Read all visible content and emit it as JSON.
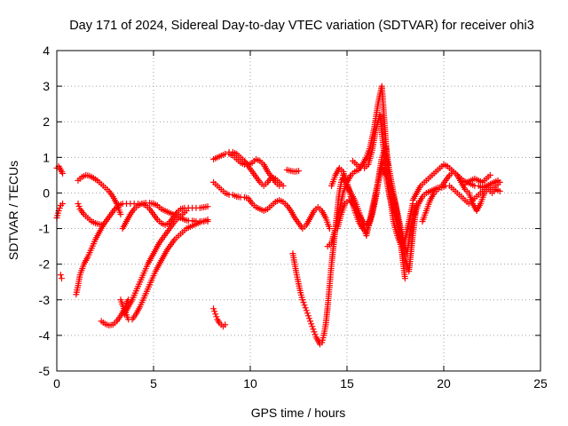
{
  "chart_data": {
    "type": "scatter",
    "title": "Day 171 of 2024, Sidereal Day-to-day VTEC variation (SDTVAR) for receiver ohi3",
    "xlabel": "GPS time / hours",
    "ylabel": "SDTVAR / TECUs",
    "xlim": [
      0,
      25
    ],
    "ylim": [
      -5,
      4
    ],
    "xticks": [
      "0",
      "5",
      "10",
      "15",
      "20",
      "25"
    ],
    "yticks": [
      "-5",
      "-4",
      "-3",
      "-2",
      "-1",
      "0",
      "1",
      "2",
      "3",
      "4"
    ],
    "grid": true,
    "marker": "plus",
    "color": "#ff0000",
    "series": [
      {
        "name": "s1",
        "x": [
          0.0,
          0.1,
          0.2,
          0.25,
          0.3
        ],
        "y": [
          0.7,
          0.75,
          0.65,
          0.6,
          0.55
        ]
      },
      {
        "name": "s2",
        "x": [
          0.0,
          0.1,
          0.2,
          0.3
        ],
        "y": [
          -0.7,
          -0.5,
          -0.35,
          -0.3
        ]
      },
      {
        "name": "s3",
        "x": [
          0.2,
          0.25
        ],
        "y": [
          -2.3,
          -2.4
        ]
      },
      {
        "name": "s4",
        "x": [
          1.0,
          1.1,
          1.2,
          1.4,
          1.6,
          1.8,
          2.0,
          2.2,
          2.4,
          2.6,
          2.8,
          3.0,
          3.2,
          3.4,
          3.6,
          3.8,
          4.0,
          4.2,
          4.4,
          4.6,
          4.8,
          5.0,
          5.2,
          5.4,
          5.6,
          5.8,
          6.0
        ],
        "y": [
          -2.85,
          -2.6,
          -2.3,
          -2.0,
          -1.8,
          -1.55,
          -1.3,
          -1.1,
          -0.9,
          -0.75,
          -0.6,
          -0.45,
          -0.35,
          -0.3,
          -0.3,
          -0.3,
          -0.3,
          -0.3,
          -0.3,
          -0.28,
          -0.28,
          -0.3,
          -0.35,
          -0.45,
          -0.5,
          -0.55,
          -0.6
        ]
      },
      {
        "name": "s5",
        "x": [
          1.1,
          1.3,
          1.5,
          1.7,
          1.9,
          2.1,
          2.3,
          2.5,
          2.7,
          2.9,
          3.1,
          3.3
        ],
        "y": [
          0.35,
          0.45,
          0.5,
          0.48,
          0.42,
          0.35,
          0.25,
          0.15,
          0.05,
          -0.1,
          -0.3,
          -0.6
        ]
      },
      {
        "name": "s6",
        "x": [
          1.1,
          1.2,
          1.4,
          1.6,
          1.8,
          2.0,
          2.2,
          2.4
        ],
        "y": [
          -0.3,
          -0.45,
          -0.6,
          -0.7,
          -0.8,
          -0.85,
          -0.88,
          -0.9
        ]
      },
      {
        "name": "s7",
        "x": [
          2.3,
          2.5,
          2.7,
          2.9,
          3.1,
          3.3,
          3.5,
          3.6,
          3.7
        ],
        "y": [
          -3.6,
          -3.68,
          -3.72,
          -3.7,
          -3.6,
          -3.45,
          -3.25,
          -3.1,
          -3.0
        ]
      },
      {
        "name": "s8",
        "x": [
          3.3,
          3.5,
          3.7,
          3.9,
          4.1,
          4.3,
          4.5,
          4.7,
          4.9,
          5.1,
          5.3,
          5.5,
          5.7,
          5.9,
          6.1,
          6.3,
          6.5,
          6.7,
          6.9,
          7.1,
          7.3,
          7.5,
          7.7,
          7.8
        ],
        "y": [
          -3.0,
          -3.3,
          -3.55,
          -3.55,
          -3.4,
          -3.2,
          -2.95,
          -2.7,
          -2.45,
          -2.2,
          -2.0,
          -1.8,
          -1.6,
          -1.45,
          -1.3,
          -1.2,
          -1.1,
          -1.0,
          -0.95,
          -0.9,
          -0.85,
          -0.8,
          -0.78,
          -0.75
        ]
      },
      {
        "name": "s9",
        "x": [
          3.5,
          3.7,
          3.9,
          4.1,
          4.3,
          4.5,
          4.7,
          4.9,
          5.1,
          5.3,
          5.5,
          5.7,
          5.9,
          6.1,
          6.3,
          6.5,
          6.7
        ],
        "y": [
          -3.4,
          -3.2,
          -3.0,
          -2.75,
          -2.5,
          -2.25,
          -2.0,
          -1.8,
          -1.6,
          -1.4,
          -1.25,
          -1.1,
          -0.95,
          -0.8,
          -0.7,
          -0.6,
          -0.5
        ]
      },
      {
        "name": "s10",
        "x": [
          3.4,
          3.6,
          3.8,
          4.0,
          4.2,
          4.4,
          4.6,
          4.8,
          5.0,
          5.2,
          5.4,
          5.6,
          5.8,
          6.0,
          6.2,
          6.4,
          6.6,
          6.8,
          7.0,
          7.2,
          7.4,
          7.6,
          7.8
        ],
        "y": [
          -1.0,
          -0.8,
          -0.6,
          -0.45,
          -0.35,
          -0.3,
          -0.35,
          -0.45,
          -0.6,
          -0.75,
          -0.85,
          -0.9,
          -0.85,
          -0.7,
          -0.55,
          -0.45,
          -0.42,
          -0.42,
          -0.42,
          -0.42,
          -0.42,
          -0.4,
          -0.38
        ]
      },
      {
        "name": "s11",
        "x": [
          6.2,
          6.4,
          6.6,
          6.8,
          7.0,
          7.2,
          7.4,
          7.6,
          7.8
        ],
        "y": [
          -0.6,
          -0.7,
          -0.75,
          -0.78,
          -0.78,
          -0.8,
          -0.8,
          -0.8,
          -0.8
        ]
      },
      {
        "name": "s12",
        "x": [
          8.1,
          8.2,
          8.3,
          8.4,
          8.5,
          8.6,
          8.7
        ],
        "y": [
          -3.25,
          -3.4,
          -3.55,
          -3.65,
          -3.7,
          -3.75,
          -3.7
        ]
      },
      {
        "name": "s13",
        "x": [
          8.1,
          8.3,
          8.5,
          8.7,
          8.9,
          9.1,
          9.3,
          9.5,
          9.7,
          9.9,
          10.1,
          10.3,
          10.5,
          10.7,
          10.9,
          11.1,
          11.3,
          11.5,
          11.7,
          11.9,
          12.1,
          12.3,
          12.5,
          12.7,
          12.9,
          13.1,
          13.3,
          13.5,
          13.7,
          13.9,
          14.1
        ],
        "y": [
          0.3,
          0.2,
          0.1,
          0.0,
          -0.05,
          -0.05,
          -0.1,
          -0.12,
          -0.12,
          -0.15,
          -0.3,
          -0.4,
          -0.45,
          -0.5,
          -0.45,
          -0.35,
          -0.25,
          -0.2,
          -0.25,
          -0.35,
          -0.5,
          -0.7,
          -0.85,
          -1.0,
          -0.9,
          -0.7,
          -0.5,
          -0.4,
          -0.5,
          -0.7,
          -1.0
        ]
      },
      {
        "name": "s14",
        "x": [
          8.1,
          8.3,
          8.5,
          8.7,
          8.9,
          9.1,
          9.3,
          9.5,
          9.7,
          9.9,
          10.1,
          10.3,
          10.5,
          10.7,
          10.9,
          11.1,
          11.3,
          11.5
        ],
        "y": [
          0.95,
          1.0,
          1.05,
          1.1,
          1.1,
          1.05,
          0.95,
          0.85,
          0.8,
          0.8,
          0.85,
          0.95,
          0.9,
          0.8,
          0.6,
          0.45,
          0.3,
          0.2
        ]
      },
      {
        "name": "s15",
        "x": [
          8.9,
          9.1,
          9.3,
          9.5,
          9.7,
          9.9,
          10.1,
          10.3,
          10.5,
          10.7,
          10.9,
          11.1,
          11.3,
          11.5,
          11.7
        ],
        "y": [
          1.15,
          1.15,
          1.1,
          1.0,
          0.9,
          0.75,
          0.6,
          0.45,
          0.3,
          0.2,
          0.3,
          0.45,
          0.4,
          0.3,
          0.2
        ]
      },
      {
        "name": "s16",
        "x": [
          11.9,
          12.1,
          12.3,
          12.5
        ],
        "y": [
          0.65,
          0.62,
          0.6,
          0.62
        ]
      },
      {
        "name": "s17",
        "x": [
          12.2,
          12.3,
          12.4,
          12.5,
          12.6,
          12.7,
          12.8,
          12.9,
          13.0,
          13.1,
          13.2,
          13.3,
          13.4,
          13.5,
          13.6,
          13.7,
          13.8,
          13.9,
          14.0,
          14.1,
          14.2,
          14.3,
          14.4,
          14.5,
          14.6,
          14.7,
          14.8
        ],
        "y": [
          -1.7,
          -2.0,
          -2.3,
          -2.55,
          -2.8,
          -3.0,
          -3.15,
          -3.3,
          -3.45,
          -3.6,
          -3.75,
          -3.9,
          -4.05,
          -4.15,
          -4.25,
          -4.2,
          -4.0,
          -3.7,
          -3.2,
          -2.6,
          -2.0,
          -1.5,
          -1.0,
          -0.5,
          0.0,
          0.3,
          0.5
        ]
      },
      {
        "name": "s18",
        "x": [
          14.0,
          14.2,
          14.4,
          14.6,
          14.8,
          15.0,
          15.2,
          15.4,
          15.6,
          15.8,
          16.0,
          16.2,
          16.4,
          16.6,
          16.8,
          17.0,
          17.2,
          17.4,
          17.6,
          17.8,
          18.0,
          18.2,
          18.4
        ],
        "y": [
          -1.5,
          -1.4,
          -1.0,
          -0.5,
          0.0,
          0.3,
          0.5,
          0.6,
          0.65,
          0.8,
          1.0,
          1.3,
          1.8,
          2.5,
          3.0,
          1.5,
          0.0,
          -0.8,
          -1.2,
          -1.5,
          -1.3,
          -0.8,
          -0.3
        ]
      },
      {
        "name": "s19",
        "x": [
          14.2,
          14.4,
          14.6,
          14.8,
          15.0,
          15.2,
          15.4,
          15.6,
          15.8,
          16.0,
          16.2,
          16.4,
          16.6,
          16.8,
          17.0,
          17.2,
          17.4,
          17.6,
          17.8,
          18.0,
          18.2,
          18.4,
          18.6
        ],
        "y": [
          0.2,
          0.5,
          0.7,
          0.6,
          0.3,
          -0.1,
          -0.5,
          -0.8,
          -1.0,
          -1.1,
          -0.8,
          -0.3,
          0.3,
          1.0,
          1.3,
          0.6,
          0.0,
          -0.6,
          -1.2,
          -1.8,
          -2.2,
          -1.2,
          -0.3
        ]
      },
      {
        "name": "s20",
        "x": [
          14.5,
          14.7,
          14.9,
          15.1,
          15.3,
          15.5,
          15.7,
          15.9,
          16.1,
          16.3,
          16.5,
          16.7,
          16.9,
          17.1,
          17.3,
          17.5,
          17.7,
          17.9,
          18.1,
          18.3,
          18.5
        ],
        "y": [
          -1.0,
          -0.6,
          -0.3,
          -0.2,
          -0.3,
          -0.5,
          -0.7,
          -0.85,
          -0.9,
          -0.6,
          -0.1,
          0.6,
          0.9,
          0.5,
          0.1,
          -0.3,
          -0.8,
          -1.3,
          -1.7,
          -1.0,
          -0.4
        ]
      },
      {
        "name": "s21",
        "x": [
          14.8,
          15.0,
          15.2,
          15.4,
          15.6,
          15.8,
          16.0,
          16.2,
          16.4,
          16.6,
          16.8,
          17.0,
          17.2,
          17.4,
          17.6,
          17.8,
          18.0
        ],
        "y": [
          0.4,
          0.2,
          0.0,
          -0.2,
          -0.5,
          -0.8,
          -1.2,
          -0.7,
          -0.2,
          0.3,
          0.7,
          0.5,
          -0.1,
          -0.5,
          -0.9,
          -1.5,
          -2.4
        ]
      },
      {
        "name": "s22",
        "x": [
          15.3,
          15.5,
          15.7,
          15.9,
          16.1,
          16.3,
          16.5,
          16.7,
          16.9,
          17.1
        ],
        "y": [
          0.9,
          0.8,
          0.7,
          0.7,
          0.8,
          1.2,
          1.8,
          2.2,
          1.2,
          0.8
        ]
      },
      {
        "name": "s23",
        "x": [
          18.4,
          18.6,
          18.8,
          19.0,
          19.2,
          19.4,
          19.6,
          19.8,
          20.0,
          20.2,
          20.4,
          20.6,
          20.8,
          21.0,
          21.2,
          21.4,
          21.6,
          21.8,
          22.0,
          22.2,
          22.4,
          22.6,
          22.8
        ],
        "y": [
          -0.2,
          0.0,
          0.2,
          0.3,
          0.4,
          0.5,
          0.6,
          0.7,
          0.8,
          0.75,
          0.65,
          0.55,
          0.45,
          0.35,
          0.3,
          0.25,
          0.2,
          0.2,
          0.15,
          0.2,
          0.25,
          0.3,
          0.35
        ]
      },
      {
        "name": "s24",
        "x": [
          18.5,
          18.7,
          18.9,
          19.1,
          19.3,
          19.5,
          19.7,
          19.9,
          20.1,
          20.3,
          20.5,
          20.7,
          20.9,
          21.1,
          21.3,
          21.5,
          21.7,
          21.9,
          22.1,
          22.3,
          22.5,
          22.7,
          22.9
        ],
        "y": [
          -0.6,
          -0.3,
          -0.1,
          0.0,
          0.05,
          0.1,
          0.15,
          0.15,
          0.2,
          0.2,
          0.1,
          0.0,
          -0.1,
          -0.2,
          -0.3,
          -0.2,
          -0.1,
          0.0,
          0.1,
          0.2,
          0.1,
          0.2,
          0.3
        ]
      },
      {
        "name": "s25",
        "x": [
          18.9,
          19.1,
          19.3,
          19.5,
          19.7,
          19.9,
          20.1,
          20.3,
          20.5,
          20.7,
          20.9,
          21.1,
          21.3,
          21.5,
          21.7,
          21.9,
          22.1,
          22.3,
          22.5,
          22.7,
          22.9
        ],
        "y": [
          -0.8,
          -0.5,
          -0.2,
          0.0,
          0.1,
          0.2,
          0.35,
          0.5,
          0.6,
          0.5,
          0.3,
          0.1,
          0.0,
          -0.3,
          -0.5,
          -0.3,
          0.0,
          0.1,
          0.0,
          0.1,
          0.05
        ]
      },
      {
        "name": "s26",
        "x": [
          21.0,
          21.2,
          21.4,
          21.6,
          21.8,
          22.0,
          22.2,
          22.4
        ],
        "y": [
          0.2,
          0.3,
          0.35,
          0.4,
          0.35,
          0.3,
          0.4,
          0.5
        ]
      }
    ]
  }
}
